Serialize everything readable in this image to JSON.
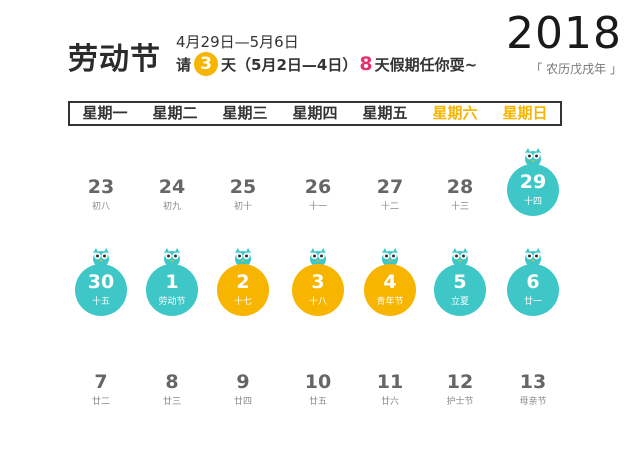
{
  "header": {
    "title": "劳动节",
    "dates": "4月29日—5月6日",
    "tagline_prefix": "请",
    "tagline_badge": "3",
    "tagline_mid": "天（5月2日—4日）",
    "tagline_pink": "8",
    "tagline_suffix": "天假期任你耍~",
    "year": "2018",
    "lunar_year": "「 农历戊戌年 」",
    "colors": {
      "teal": "#3fc7c8",
      "gold": "#f7b500",
      "pink": "#e5316e"
    }
  },
  "weekdays": [
    "星期一",
    "星期二",
    "星期三",
    "星期四",
    "星期五",
    "星期六",
    "星期日"
  ],
  "weeks": [
    [
      {
        "day": "23",
        "sub": "初八",
        "style": "plain"
      },
      {
        "day": "24",
        "sub": "初九",
        "style": "plain"
      },
      {
        "day": "25",
        "sub": "初十",
        "style": "plain"
      },
      {
        "day": "26",
        "sub": "十一",
        "style": "plain"
      },
      {
        "day": "27",
        "sub": "十二",
        "style": "plain"
      },
      {
        "day": "28",
        "sub": "十三",
        "style": "plain"
      },
      {
        "day": "29",
        "sub": "十四",
        "style": "teal"
      }
    ],
    [
      {
        "day": "30",
        "sub": "十五",
        "style": "teal"
      },
      {
        "day": "1",
        "sub": "劳动节",
        "style": "teal"
      },
      {
        "day": "2",
        "sub": "十七",
        "style": "gold"
      },
      {
        "day": "3",
        "sub": "十八",
        "style": "gold"
      },
      {
        "day": "4",
        "sub": "青年节",
        "style": "gold"
      },
      {
        "day": "5",
        "sub": "立夏",
        "style": "teal"
      },
      {
        "day": "6",
        "sub": "廿一",
        "style": "teal"
      }
    ],
    [
      {
        "day": "7",
        "sub": "廿二",
        "style": "plain"
      },
      {
        "day": "8",
        "sub": "廿三",
        "style": "plain"
      },
      {
        "day": "9",
        "sub": "廿四",
        "style": "plain"
      },
      {
        "day": "10",
        "sub": "廿五",
        "style": "plain"
      },
      {
        "day": "11",
        "sub": "廿六",
        "style": "plain"
      },
      {
        "day": "12",
        "sub": "护士节",
        "style": "plain"
      },
      {
        "day": "13",
        "sub": "母亲节",
        "style": "plain"
      }
    ]
  ]
}
